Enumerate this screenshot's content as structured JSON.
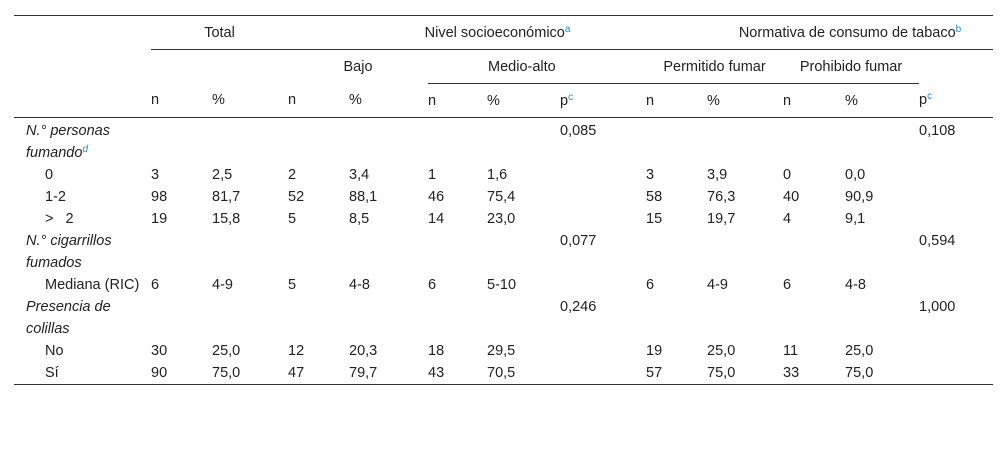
{
  "header": {
    "groups": [
      {
        "label": "Total"
      },
      {
        "label": "Nivel socioeconómico",
        "sup": "a"
      },
      {
        "label": "Normativa de consumo de tabaco",
        "sup": "b"
      }
    ],
    "subgroups": [
      "Bajo",
      "Medio-alto",
      "Permitido fumar",
      "Prohibido fumar"
    ],
    "columns": [
      {
        "label": "n"
      },
      {
        "label": "%"
      },
      {
        "label": "n"
      },
      {
        "label": "%"
      },
      {
        "label": "n"
      },
      {
        "label": "%"
      },
      {
        "label": "p",
        "sup": "c"
      },
      {
        "label": "n"
      },
      {
        "label": "%"
      },
      {
        "label": "n"
      },
      {
        "label": "%"
      },
      {
        "label": "p",
        "sup": "c"
      }
    ]
  },
  "sections": [
    {
      "label": "N.° personas fumando",
      "sup": "d",
      "p": [
        "0,085",
        "0,108"
      ],
      "rows": [
        {
          "label": "0",
          "values": [
            "3",
            "2,5",
            "2",
            "3,4",
            "1",
            "1,6",
            "3",
            "3,9",
            "0",
            "0,0"
          ]
        },
        {
          "label": "1-2",
          "values": [
            "98",
            "81,7",
            "52",
            "88,1",
            "46",
            "75,4",
            "58",
            "76,3",
            "40",
            "90,9"
          ]
        },
        {
          "label": ">   2",
          "values": [
            "19",
            "15,8",
            "5",
            "8,5",
            "14",
            "23,0",
            "15",
            "19,7",
            "4",
            "9,1"
          ]
        }
      ]
    },
    {
      "label": "N.° cigarrillos fumados",
      "p": [
        "0,077",
        "0,594"
      ],
      "rows": [
        {
          "label": "Mediana (RIC)",
          "values": [
            "6",
            "4-9",
            "5",
            "4-8",
            "6",
            "5-10",
            "6",
            "4-9",
            "6",
            "4-8"
          ]
        }
      ]
    },
    {
      "label": "Presencia de colillas",
      "p": [
        "0,246",
        "1,000"
      ],
      "rows": [
        {
          "label": "No",
          "values": [
            "30",
            "25,0",
            "12",
            "20,3",
            "18",
            "29,5",
            "19",
            "25,0",
            "11",
            "25,0"
          ]
        },
        {
          "label": "Sí",
          "values": [
            "90",
            "75,0",
            "47",
            "79,7",
            "43",
            "70,5",
            "57",
            "75,0",
            "33",
            "75,0"
          ]
        }
      ]
    }
  ]
}
